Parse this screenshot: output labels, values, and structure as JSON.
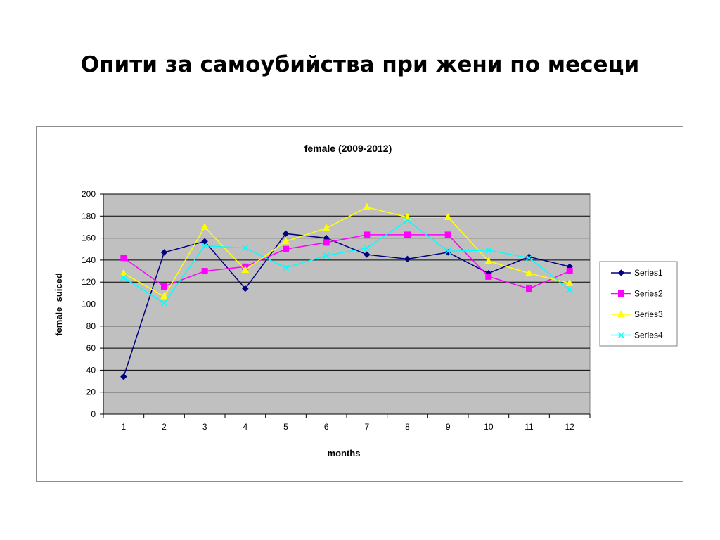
{
  "slide": {
    "title": "Опити за самоубийства при жени по месеци"
  },
  "chart_data": {
    "type": "line",
    "title": "female (2009-2012)",
    "xlabel": "months",
    "ylabel": "female_suiced",
    "categories": [
      "1",
      "2",
      "3",
      "4",
      "5",
      "6",
      "7",
      "8",
      "9",
      "10",
      "11",
      "12"
    ],
    "ylim": [
      0,
      200
    ],
    "yticks": [
      "0",
      "20",
      "40",
      "60",
      "80",
      "100",
      "120",
      "140",
      "160",
      "180",
      "200"
    ],
    "grid": true,
    "plot_background": "#c0c0c0",
    "legend_position": "right",
    "series": [
      {
        "name": "Series1",
        "color": "#000080",
        "marker": "diamond",
        "values": [
          34,
          147,
          157,
          114,
          164,
          160,
          145,
          141,
          147,
          128,
          143,
          134
        ]
      },
      {
        "name": "Series2",
        "color": "#ff00ff",
        "marker": "square",
        "values": [
          142,
          116,
          130,
          134,
          150,
          156,
          163,
          163,
          163,
          125,
          114,
          130
        ]
      },
      {
        "name": "Series3",
        "color": "#ffff00",
        "marker": "triangle",
        "values": [
          128,
          107,
          170,
          131,
          157,
          169,
          188,
          179,
          179,
          139,
          128,
          119
        ]
      },
      {
        "name": "Series4",
        "color": "#00ffff",
        "marker": "x",
        "values": [
          124,
          101,
          153,
          151,
          133,
          144,
          151,
          176,
          148,
          149,
          142,
          113
        ]
      }
    ]
  }
}
